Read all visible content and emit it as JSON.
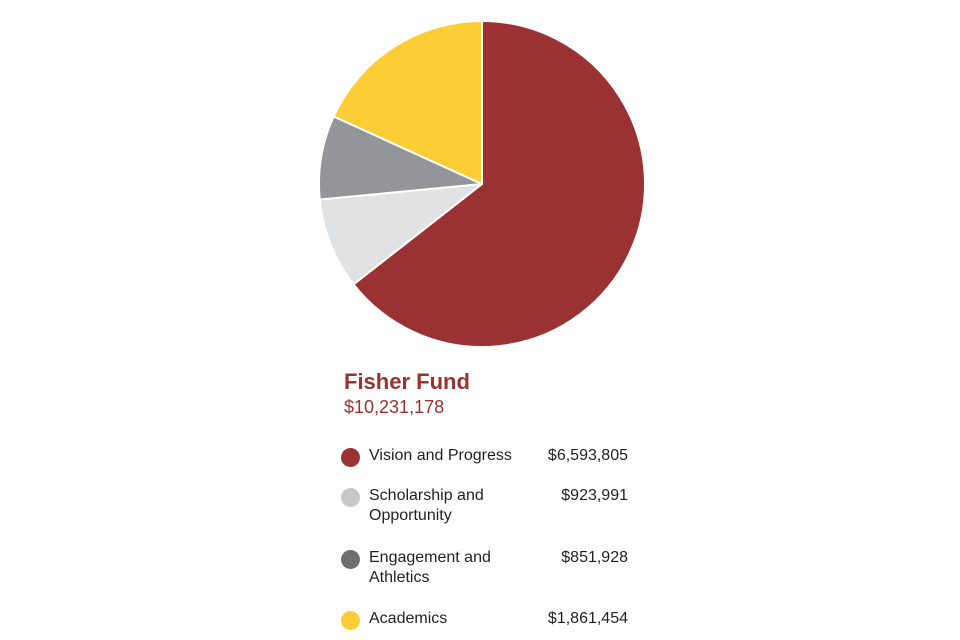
{
  "chart_data": {
    "type": "pie",
    "title": "Fisher Fund",
    "total": "$10,231,178",
    "start": "top",
    "direction": "clockwise",
    "slices": [
      {
        "label": "Vision and Progress",
        "value": 6593805,
        "value_label": "$6,593,805",
        "color": "#9a3132",
        "legend_color": "#9a3132"
      },
      {
        "label": "Scholarship and Opportunity",
        "value": 923991,
        "value_label": "$923,991",
        "color": "#e1e2e3",
        "legend_color": "#c8c8ca"
      },
      {
        "label": "Engagement and Athletics",
        "value": 851928,
        "value_label": "$851,928",
        "color": "#939598",
        "legend_color": "#6d6e71"
      },
      {
        "label": "Academics",
        "value": 1861454,
        "value_label": "$1,861,454",
        "color": "#fdcd35",
        "legend_color": "#fdcd35"
      }
    ],
    "legend_placement": "bottom"
  }
}
